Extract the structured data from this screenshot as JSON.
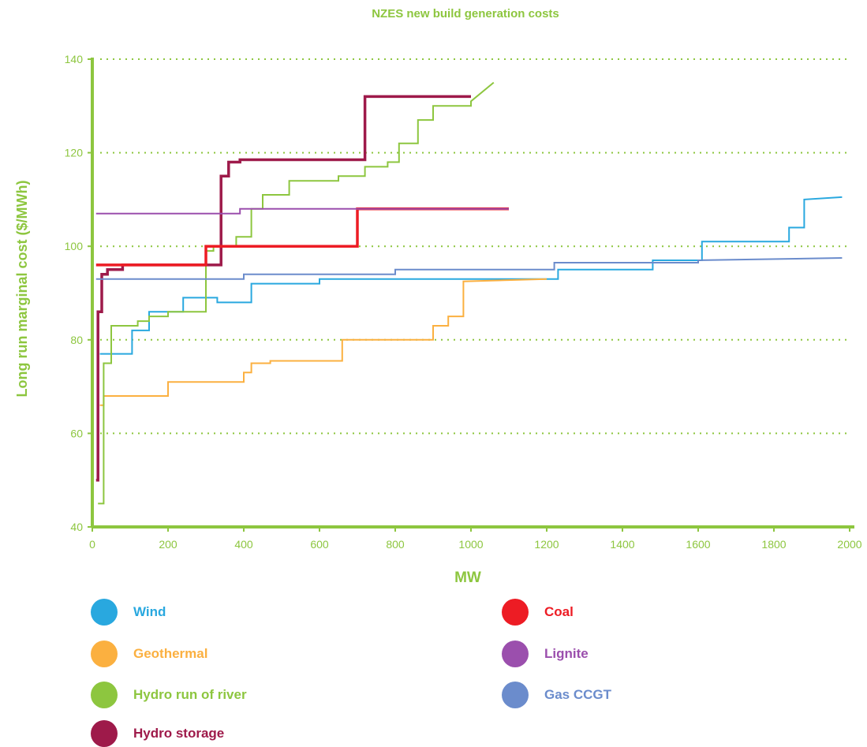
{
  "chart_data": {
    "type": "line",
    "title": "NZES new build generation costs",
    "xlabel": "MW",
    "ylabel": "Long run marginal cost ($/MWh)",
    "xlim": [
      0,
      2000
    ],
    "ylim": [
      40,
      140
    ],
    "xticks": [
      "0",
      "200",
      "400",
      "600",
      "800",
      "1000",
      "1200",
      "1400",
      "1600",
      "1800",
      "2000"
    ],
    "yticks": [
      "40",
      "60",
      "80",
      "100",
      "120",
      "140"
    ],
    "grid": true,
    "step": true,
    "legend_position": "bottom",
    "series": [
      {
        "name": "Wind",
        "color": "#29a8df",
        "x": [
          20,
          105,
          105,
          150,
          150,
          240,
          240,
          330,
          330,
          420,
          420,
          600,
          600,
          1230,
          1230,
          1480,
          1480,
          1610,
          1610,
          1840,
          1840,
          1880,
          1880,
          1980
        ],
        "y": [
          77,
          77,
          82,
          82,
          86,
          86,
          89,
          89,
          88,
          88,
          92,
          92,
          93,
          93,
          95,
          95,
          97,
          97,
          101,
          101,
          104,
          104,
          110,
          110.5
        ]
      },
      {
        "name": "Geothermal",
        "color": "#fbb040",
        "x": [
          20,
          30,
          30,
          200,
          200,
          400,
          400,
          420,
          420,
          470,
          470,
          660,
          660,
          900,
          900,
          940,
          940,
          980,
          980,
          1200
        ],
        "y": [
          66,
          66,
          68,
          68,
          71,
          71,
          73,
          73,
          75,
          75,
          75.5,
          75.5,
          80,
          80,
          83,
          83,
          85,
          85,
          92.5,
          93
        ]
      },
      {
        "name": "Hydro run of river",
        "color": "#8dc63f",
        "x": [
          15,
          30,
          30,
          50,
          50,
          120,
          120,
          150,
          150,
          200,
          200,
          300,
          300,
          320,
          320,
          380,
          380,
          420,
          420,
          450,
          450,
          520,
          520,
          650,
          650,
          720,
          720,
          780,
          780,
          810,
          810,
          860,
          860,
          900,
          900,
          1000,
          1000,
          1060
        ],
        "y": [
          45,
          45,
          75,
          75,
          83,
          83,
          84,
          84,
          85,
          85,
          86,
          86,
          99,
          99,
          100,
          100,
          102,
          102,
          108,
          108,
          111,
          111,
          114,
          114,
          115,
          115,
          117,
          117,
          118,
          118,
          122,
          122,
          127,
          127,
          130,
          130,
          131,
          135
        ]
      },
      {
        "name": "Hydro storage",
        "color": "#9e1a4a",
        "x": [
          10,
          15,
          15,
          25,
          25,
          40,
          40,
          80,
          80,
          340,
          340,
          360,
          360,
          390,
          390,
          720,
          720,
          1000
        ],
        "y": [
          50,
          50,
          86,
          86,
          94,
          94,
          95,
          95,
          96,
          96,
          115,
          115,
          118,
          118,
          118.5,
          118.5,
          132,
          132
        ]
      },
      {
        "name": "Coal",
        "color": "#ed1c24",
        "x": [
          10,
          300,
          300,
          700,
          700,
          1100
        ],
        "y": [
          96,
          96,
          100,
          100,
          108,
          108
        ]
      },
      {
        "name": "Lignite",
        "color": "#9b4fad",
        "x": [
          10,
          390,
          390,
          1100
        ],
        "y": [
          107,
          107,
          108,
          108
        ]
      },
      {
        "name": "Gas CCGT",
        "color": "#6b8ccc",
        "x": [
          10,
          400,
          400,
          800,
          800,
          1220,
          1220,
          1600,
          1600,
          1980
        ],
        "y": [
          93,
          93,
          94,
          94,
          95,
          95,
          96.5,
          96.5,
          97,
          97.5
        ]
      }
    ]
  }
}
